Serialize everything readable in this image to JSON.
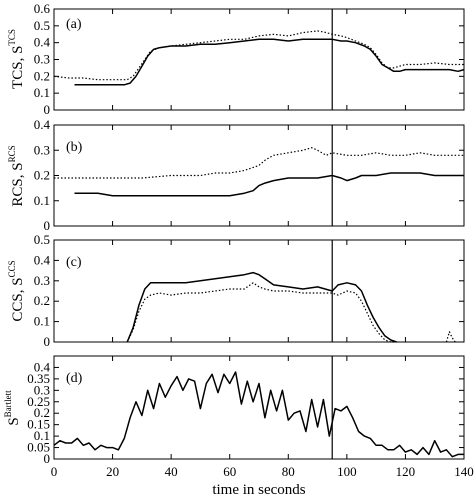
{
  "chart_data": [
    {
      "type": "line",
      "panel_label": "(a)",
      "ylabel": {
        "base": "TCS, S",
        "sup": "TCS"
      },
      "ylim": [
        0,
        0.6
      ],
      "yticks": [
        "0",
        "0.1",
        "0.2",
        "0.3",
        "0.4",
        "0.5",
        "0.6"
      ],
      "xlim": [
        0,
        140
      ],
      "vline_x": 95,
      "series": [
        {
          "style": "solid",
          "x": [
            7,
            10,
            15,
            20,
            24,
            26,
            28,
            30,
            32,
            34,
            36,
            40,
            45,
            50,
            55,
            60,
            65,
            70,
            75,
            80,
            85,
            90,
            93,
            95,
            98,
            100,
            103,
            106,
            108,
            110,
            112,
            114,
            116,
            118,
            120,
            125,
            130,
            135,
            138,
            140
          ],
          "y": [
            0.15,
            0.15,
            0.15,
            0.15,
            0.15,
            0.16,
            0.2,
            0.26,
            0.32,
            0.36,
            0.37,
            0.38,
            0.38,
            0.39,
            0.39,
            0.4,
            0.41,
            0.42,
            0.42,
            0.41,
            0.42,
            0.42,
            0.42,
            0.42,
            0.41,
            0.41,
            0.4,
            0.38,
            0.36,
            0.32,
            0.27,
            0.25,
            0.23,
            0.23,
            0.24,
            0.24,
            0.24,
            0.24,
            0.23,
            0.24
          ]
        },
        {
          "style": "dotted",
          "x": [
            0,
            5,
            10,
            15,
            20,
            25,
            27,
            29,
            31,
            33,
            36,
            40,
            45,
            50,
            55,
            60,
            65,
            70,
            75,
            80,
            85,
            90,
            93,
            95,
            98,
            100,
            103,
            106,
            108,
            110,
            112,
            114,
            116,
            118,
            120,
            125,
            130,
            135,
            140
          ],
          "y": [
            0.2,
            0.19,
            0.19,
            0.18,
            0.18,
            0.18,
            0.2,
            0.25,
            0.3,
            0.35,
            0.37,
            0.38,
            0.39,
            0.4,
            0.41,
            0.42,
            0.42,
            0.44,
            0.45,
            0.44,
            0.46,
            0.47,
            0.46,
            0.45,
            0.44,
            0.43,
            0.41,
            0.39,
            0.37,
            0.33,
            0.28,
            0.25,
            0.25,
            0.26,
            0.27,
            0.27,
            0.28,
            0.27,
            0.27
          ]
        }
      ]
    },
    {
      "type": "line",
      "panel_label": "(b)",
      "ylabel": {
        "base": "RCS, S",
        "sup": "RCS"
      },
      "ylim": [
        0,
        0.4
      ],
      "yticks": [
        "0",
        "0.1",
        "0.2",
        "0.3",
        "0.4"
      ],
      "xlim": [
        0,
        140
      ],
      "vline_x": 95,
      "series": [
        {
          "style": "solid",
          "x": [
            7,
            10,
            15,
            20,
            25,
            30,
            35,
            40,
            45,
            50,
            55,
            60,
            65,
            68,
            70,
            72,
            75,
            80,
            85,
            90,
            95,
            98,
            100,
            103,
            105,
            110,
            115,
            120,
            125,
            130,
            135,
            140
          ],
          "y": [
            0.13,
            0.13,
            0.13,
            0.12,
            0.12,
            0.12,
            0.12,
            0.12,
            0.12,
            0.12,
            0.12,
            0.12,
            0.13,
            0.14,
            0.16,
            0.17,
            0.18,
            0.19,
            0.19,
            0.19,
            0.2,
            0.19,
            0.18,
            0.19,
            0.2,
            0.2,
            0.21,
            0.21,
            0.21,
            0.2,
            0.2,
            0.2
          ]
        },
        {
          "style": "dotted",
          "x": [
            0,
            10,
            20,
            30,
            40,
            50,
            55,
            60,
            65,
            70,
            72,
            75,
            80,
            85,
            88,
            90,
            93,
            95,
            100,
            105,
            110,
            115,
            120,
            125,
            130,
            135,
            140
          ],
          "y": [
            0.19,
            0.19,
            0.19,
            0.19,
            0.2,
            0.2,
            0.21,
            0.21,
            0.22,
            0.24,
            0.26,
            0.28,
            0.29,
            0.3,
            0.31,
            0.3,
            0.28,
            0.29,
            0.28,
            0.28,
            0.29,
            0.28,
            0.28,
            0.29,
            0.28,
            0.28,
            0.28
          ]
        }
      ]
    },
    {
      "type": "line",
      "panel_label": "(c)",
      "ylabel": {
        "base": "CCS, S",
        "sup": "CCS"
      },
      "ylim": [
        0,
        0.5
      ],
      "yticks": [
        "0",
        "0.1",
        "0.2",
        "0.3",
        "0.4",
        "0.5"
      ],
      "xlim": [
        0,
        140
      ],
      "vline_x": 95,
      "series": [
        {
          "style": "solid",
          "x": [
            25,
            27,
            29,
            31,
            33,
            36,
            40,
            45,
            50,
            55,
            60,
            65,
            68,
            70,
            72,
            75,
            80,
            85,
            90,
            95,
            97,
            100,
            103,
            105,
            107,
            109,
            111,
            113,
            115,
            117
          ],
          "y": [
            0.0,
            0.07,
            0.18,
            0.26,
            0.29,
            0.29,
            0.29,
            0.29,
            0.3,
            0.31,
            0.32,
            0.33,
            0.34,
            0.33,
            0.31,
            0.28,
            0.27,
            0.26,
            0.27,
            0.25,
            0.28,
            0.29,
            0.28,
            0.25,
            0.18,
            0.12,
            0.07,
            0.03,
            0.01,
            0.0
          ]
        },
        {
          "style": "dotted",
          "x": [
            25,
            27,
            29,
            31,
            33,
            36,
            40,
            45,
            50,
            55,
            60,
            65,
            68,
            70,
            72,
            75,
            80,
            85,
            90,
            95,
            97,
            100,
            103,
            105,
            107,
            109,
            111,
            113,
            115,
            117
          ],
          "y": [
            0.0,
            0.06,
            0.15,
            0.21,
            0.23,
            0.24,
            0.23,
            0.24,
            0.24,
            0.25,
            0.26,
            0.26,
            0.29,
            0.27,
            0.26,
            0.25,
            0.25,
            0.24,
            0.24,
            0.24,
            0.23,
            0.25,
            0.24,
            0.2,
            0.14,
            0.08,
            0.04,
            0.01,
            0.0,
            0.0
          ]
        },
        {
          "style": "dotted",
          "x": [
            134,
            135,
            136,
            137
          ],
          "y": [
            0.0,
            0.05,
            0.02,
            0.0
          ]
        }
      ]
    },
    {
      "type": "line",
      "panel_label": "(d)",
      "ylabel": {
        "base": "S",
        "sup": "Bartlett"
      },
      "ylim": [
        0,
        0.45
      ],
      "yticks": [
        "0",
        "0.05",
        "0.1",
        "0.15",
        "0.2",
        "0.25",
        "0.3",
        "0.35",
        "0.4"
      ],
      "xlim": [
        0,
        140
      ],
      "xticks": [
        "0",
        "20",
        "40",
        "60",
        "80",
        "100",
        "120",
        "140"
      ],
      "xlabel": "time in seconds",
      "vline_x": 95,
      "series": [
        {
          "style": "solid",
          "x": [
            0,
            2,
            4,
            6,
            8,
            10,
            12,
            14,
            16,
            18,
            20,
            22,
            24,
            26,
            28,
            30,
            32,
            34,
            36,
            38,
            40,
            42,
            44,
            46,
            48,
            50,
            52,
            54,
            56,
            58,
            60,
            62,
            64,
            66,
            68,
            70,
            72,
            74,
            76,
            78,
            80,
            82,
            84,
            86,
            88,
            90,
            92,
            94,
            96,
            98,
            100,
            102,
            104,
            106,
            108,
            110,
            112,
            114,
            116,
            118,
            120,
            122,
            124,
            126,
            128,
            130,
            132,
            134,
            136,
            138,
            140
          ],
          "y": [
            0.06,
            0.08,
            0.07,
            0.07,
            0.09,
            0.06,
            0.07,
            0.04,
            0.06,
            0.05,
            0.05,
            0.04,
            0.09,
            0.18,
            0.25,
            0.19,
            0.3,
            0.22,
            0.33,
            0.27,
            0.32,
            0.36,
            0.3,
            0.35,
            0.34,
            0.22,
            0.33,
            0.37,
            0.29,
            0.37,
            0.33,
            0.38,
            0.24,
            0.34,
            0.25,
            0.33,
            0.18,
            0.3,
            0.21,
            0.3,
            0.17,
            0.2,
            0.21,
            0.12,
            0.26,
            0.14,
            0.26,
            0.1,
            0.22,
            0.21,
            0.23,
            0.18,
            0.12,
            0.1,
            0.09,
            0.06,
            0.06,
            0.04,
            0.04,
            0.06,
            0.03,
            0.04,
            0.02,
            0.05,
            0.02,
            0.08,
            0.03,
            0.04,
            0.01,
            0.02,
            0.02
          ]
        }
      ]
    }
  ]
}
